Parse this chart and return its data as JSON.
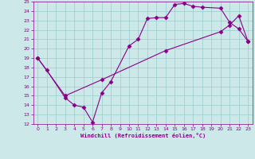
{
  "xlabel": "Windchill (Refroidissement éolien,°C)",
  "xlim": [
    -0.5,
    23.5
  ],
  "ylim": [
    12,
    25
  ],
  "xticks": [
    0,
    1,
    2,
    3,
    4,
    5,
    6,
    7,
    8,
    9,
    10,
    11,
    12,
    13,
    14,
    15,
    16,
    17,
    18,
    19,
    20,
    21,
    22,
    23
  ],
  "yticks": [
    12,
    13,
    14,
    15,
    16,
    17,
    18,
    19,
    20,
    21,
    22,
    23,
    24,
    25
  ],
  "bg_color": "#cce8e8",
  "line_color": "#880088",
  "grid_color": "#99cccc",
  "line1_x": [
    0,
    1,
    3,
    4,
    5,
    6,
    7,
    8,
    10,
    11,
    12,
    13,
    14,
    15,
    16,
    17,
    18,
    20,
    21,
    22,
    23
  ],
  "line1_y": [
    19,
    17.7,
    14.8,
    14.0,
    13.8,
    12.2,
    15.3,
    16.5,
    20.3,
    21.0,
    23.2,
    23.3,
    23.3,
    24.7,
    24.8,
    24.5,
    24.4,
    24.3,
    22.8,
    22.1,
    20.8
  ],
  "line2_x": [
    0,
    3,
    7,
    14,
    20,
    21,
    22,
    23
  ],
  "line2_y": [
    19.0,
    15.0,
    16.7,
    19.8,
    21.8,
    22.5,
    23.5,
    20.8
  ],
  "marker": "D",
  "markersize": 2.5,
  "linewidth": 0.8
}
